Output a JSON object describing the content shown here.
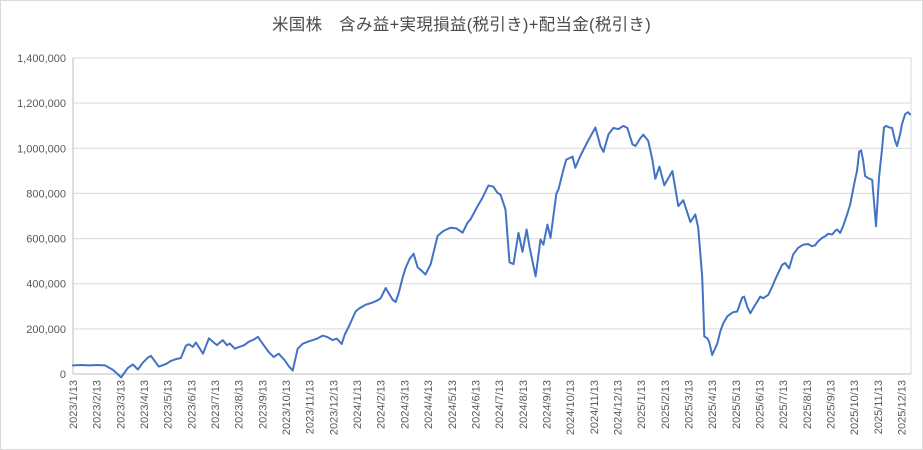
{
  "chart_title": "米国株　含み益+実現損益(税引き)+配当金(税引き)",
  "colors": {
    "line": "#4472C4",
    "gridline": "#D9D9D9",
    "axis_line": "#BFBFBF",
    "tick_text": "#595959",
    "title_text": "#4a4a4a",
    "background": "#FFFFFF"
  },
  "chart_data": {
    "type": "line",
    "title": "米国株　含み益+実現損益(税引き)+配当金(税引き)",
    "xlabel": "",
    "ylabel": "",
    "legend": "none",
    "grid": "horizontal",
    "ylim": [
      0,
      1400000
    ],
    "y_tick_interval": 200000,
    "y_tick_labels": [
      "0",
      "200,000",
      "400,000",
      "600,000",
      "800,000",
      "1,000,000",
      "1,200,000",
      "1,400,000"
    ],
    "x_axis_unit": "months since 2023/1/13",
    "x_range": [
      0,
      35.4
    ],
    "x_tick_labels": [
      "2023/1/13",
      "2023/2/13",
      "2023/3/13",
      "2023/4/13",
      "2023/5/13",
      "2023/6/13",
      "2023/7/13",
      "2023/8/13",
      "2023/9/13",
      "2023/10/13",
      "2023/11/13",
      "2023/12/13",
      "2024/1/13",
      "2024/2/13",
      "2024/3/13",
      "2024/4/13",
      "2024/5/13",
      "2024/6/13",
      "2024/7/13",
      "2024/8/13",
      "2024/9/13",
      "2024/10/13",
      "2024/11/13",
      "2024/12/13",
      "2025/1/13",
      "2025/2/13",
      "2025/3/13",
      "2025/4/13",
      "2025/5/13",
      "2025/6/13",
      "2025/7/13",
      "2025/8/13",
      "2025/9/13",
      "2025/10/13",
      "2025/11/13",
      "2025/12/13"
    ],
    "series": [
      {
        "points": [
          [
            0,
            38000
          ],
          [
            0.34,
            40000
          ],
          [
            0.68,
            38000
          ],
          [
            1.01,
            40000
          ],
          [
            1.35,
            38000
          ],
          [
            1.69,
            18000
          ],
          [
            2.03,
            -15000
          ],
          [
            2.32,
            27000
          ],
          [
            2.53,
            42000
          ],
          [
            2.74,
            20000
          ],
          [
            2.95,
            50000
          ],
          [
            3.16,
            72000
          ],
          [
            3.29,
            80000
          ],
          [
            3.5,
            50000
          ],
          [
            3.63,
            33000
          ],
          [
            3.92,
            44000
          ],
          [
            4.14,
            58000
          ],
          [
            4.35,
            66000
          ],
          [
            4.56,
            71000
          ],
          [
            4.77,
            125000
          ],
          [
            4.89,
            132000
          ],
          [
            5.06,
            120000
          ],
          [
            5.19,
            140000
          ],
          [
            5.49,
            90000
          ],
          [
            5.74,
            158000
          ],
          [
            5.91,
            143000
          ],
          [
            6.08,
            128000
          ],
          [
            6.2,
            139000
          ],
          [
            6.33,
            150000
          ],
          [
            6.5,
            127000
          ],
          [
            6.62,
            135000
          ],
          [
            6.84,
            112000
          ],
          [
            7.0,
            119000
          ],
          [
            7.22,
            127000
          ],
          [
            7.43,
            143000
          ],
          [
            7.64,
            153000
          ],
          [
            7.81,
            165000
          ],
          [
            8.06,
            127000
          ],
          [
            8.27,
            97000
          ],
          [
            8.48,
            75000
          ],
          [
            8.69,
            90000
          ],
          [
            8.95,
            60000
          ],
          [
            9.11,
            35000
          ],
          [
            9.28,
            15000
          ],
          [
            9.49,
            112000
          ],
          [
            9.7,
            134000
          ],
          [
            9.92,
            143000
          ],
          [
            10.13,
            150000
          ],
          [
            10.34,
            158000
          ],
          [
            10.55,
            170000
          ],
          [
            10.76,
            163000
          ],
          [
            10.97,
            150000
          ],
          [
            11.14,
            157000
          ],
          [
            11.35,
            133000
          ],
          [
            11.48,
            175000
          ],
          [
            11.65,
            210000
          ],
          [
            11.81,
            247000
          ],
          [
            11.94,
            277000
          ],
          [
            12.07,
            289000
          ],
          [
            12.24,
            299000
          ],
          [
            12.36,
            307000
          ],
          [
            12.49,
            311000
          ],
          [
            12.66,
            317000
          ],
          [
            12.78,
            322000
          ],
          [
            12.91,
            329000
          ],
          [
            13.0,
            336000
          ],
          [
            13.21,
            381000
          ],
          [
            13.33,
            359000
          ],
          [
            13.5,
            329000
          ],
          [
            13.63,
            319000
          ],
          [
            13.76,
            359000
          ],
          [
            13.92,
            425000
          ],
          [
            14.05,
            470000
          ],
          [
            14.22,
            510000
          ],
          [
            14.39,
            533000
          ],
          [
            14.56,
            472000
          ],
          [
            14.68,
            462000
          ],
          [
            14.89,
            441000
          ],
          [
            15.11,
            487000
          ],
          [
            15.4,
            612000
          ],
          [
            15.65,
            634000
          ],
          [
            15.95,
            648000
          ],
          [
            16.2,
            645000
          ],
          [
            16.46,
            626000
          ],
          [
            16.67,
            671000
          ],
          [
            16.79,
            685000
          ],
          [
            17.09,
            744000
          ],
          [
            17.3,
            781000
          ],
          [
            17.55,
            835000
          ],
          [
            17.76,
            830000
          ],
          [
            17.93,
            803000
          ],
          [
            18.06,
            795000
          ],
          [
            18.27,
            729000
          ],
          [
            18.44,
            495000
          ],
          [
            18.61,
            487000
          ],
          [
            18.82,
            625000
          ],
          [
            18.99,
            541000
          ],
          [
            19.16,
            640000
          ],
          [
            19.28,
            566000
          ],
          [
            19.54,
            433000
          ],
          [
            19.75,
            596000
          ],
          [
            19.87,
            573000
          ],
          [
            20.04,
            662000
          ],
          [
            20.17,
            603000
          ],
          [
            20.42,
            800000
          ],
          [
            20.51,
            818000
          ],
          [
            20.72,
            907000
          ],
          [
            20.84,
            950000
          ],
          [
            21.1,
            963000
          ],
          [
            21.22,
            914000
          ],
          [
            21.43,
            966000
          ],
          [
            21.73,
            1028000
          ],
          [
            22.07,
            1092000
          ],
          [
            22.28,
            1010000
          ],
          [
            22.41,
            984000
          ],
          [
            22.62,
            1062000
          ],
          [
            22.83,
            1090000
          ],
          [
            23.04,
            1085000
          ],
          [
            23.25,
            1099000
          ],
          [
            23.42,
            1090000
          ],
          [
            23.63,
            1018000
          ],
          [
            23.76,
            1010000
          ],
          [
            23.97,
            1045000
          ],
          [
            24.09,
            1060000
          ],
          [
            24.3,
            1033000
          ],
          [
            24.47,
            951000
          ],
          [
            24.6,
            865000
          ],
          [
            24.77,
            919000
          ],
          [
            24.98,
            836000
          ],
          [
            25.32,
            899000
          ],
          [
            25.57,
            744000
          ],
          [
            25.78,
            770000
          ],
          [
            26.08,
            673000
          ],
          [
            26.29,
            707000
          ],
          [
            26.41,
            648000
          ],
          [
            26.58,
            430000
          ],
          [
            26.67,
            166000
          ],
          [
            26.79,
            159000
          ],
          [
            26.88,
            141000
          ],
          [
            27.0,
            84000
          ],
          [
            27.22,
            136000
          ],
          [
            27.34,
            188000
          ],
          [
            27.47,
            225000
          ],
          [
            27.64,
            255000
          ],
          [
            27.76,
            265000
          ],
          [
            27.89,
            274000
          ],
          [
            28.06,
            277000
          ],
          [
            28.27,
            339000
          ],
          [
            28.35,
            343000
          ],
          [
            28.48,
            299000
          ],
          [
            28.61,
            269000
          ],
          [
            28.82,
            306000
          ],
          [
            28.95,
            328000
          ],
          [
            29.03,
            343000
          ],
          [
            29.16,
            336000
          ],
          [
            29.37,
            351000
          ],
          [
            29.54,
            388000
          ],
          [
            29.66,
            418000
          ],
          [
            29.79,
            447000
          ],
          [
            29.96,
            484000
          ],
          [
            30.08,
            492000
          ],
          [
            30.25,
            468000
          ],
          [
            30.42,
            529000
          ],
          [
            30.63,
            559000
          ],
          [
            30.84,
            573000
          ],
          [
            31.05,
            576000
          ],
          [
            31.22,
            566000
          ],
          [
            31.35,
            570000
          ],
          [
            31.48,
            588000
          ],
          [
            31.65,
            603000
          ],
          [
            31.77,
            610000
          ],
          [
            31.9,
            621000
          ],
          [
            32.07,
            618000
          ],
          [
            32.19,
            633000
          ],
          [
            32.28,
            640000
          ],
          [
            32.41,
            625000
          ],
          [
            32.53,
            655000
          ],
          [
            32.7,
            707000
          ],
          [
            32.83,
            751000
          ],
          [
            32.91,
            795000
          ],
          [
            33.04,
            862000
          ],
          [
            33.12,
            899000
          ],
          [
            33.21,
            985000
          ],
          [
            33.29,
            991000
          ],
          [
            33.38,
            944000
          ],
          [
            33.46,
            877000
          ],
          [
            33.59,
            868000
          ],
          [
            33.76,
            860000
          ],
          [
            33.92,
            655000
          ],
          [
            34.05,
            870000
          ],
          [
            34.18,
            1000000
          ],
          [
            34.26,
            1092000
          ],
          [
            34.35,
            1099000
          ],
          [
            34.47,
            1093000
          ],
          [
            34.6,
            1090000
          ],
          [
            34.73,
            1033000
          ],
          [
            34.81,
            1010000
          ],
          [
            34.94,
            1062000
          ],
          [
            35.02,
            1107000
          ],
          [
            35.15,
            1151000
          ],
          [
            35.27,
            1160000
          ],
          [
            35.36,
            1150000
          ]
        ]
      }
    ]
  }
}
